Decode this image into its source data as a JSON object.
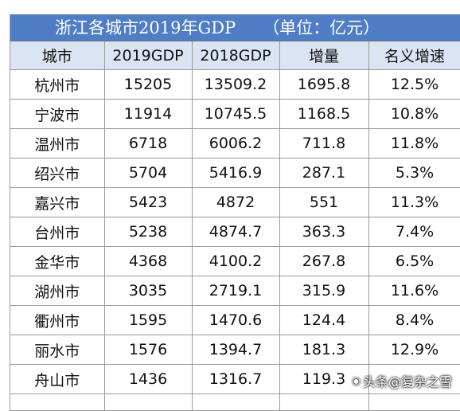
{
  "table": {
    "title": "浙江各城市2019年GDP",
    "unit": "（单位：亿元）",
    "headers": [
      "城市",
      "2019GDP",
      "2018GDP",
      "增量",
      "名义增速"
    ],
    "rows": [
      [
        "杭州市",
        "15205",
        "13509.2",
        "1695.8",
        "12.5%"
      ],
      [
        "宁波市",
        "11914",
        "10745.5",
        "1168.5",
        "10.8%"
      ],
      [
        "温州市",
        "6718",
        "6006.2",
        "711.8",
        "11.8%"
      ],
      [
        "绍兴市",
        "5704",
        "5416.9",
        "287.1",
        "5.3%"
      ],
      [
        "嘉兴市",
        "5423",
        "4872",
        "551",
        "11.3%"
      ],
      [
        "台州市",
        "5238",
        "4874.7",
        "363.3",
        "7.4%"
      ],
      [
        "金华市",
        "4368",
        "4100.2",
        "267.8",
        "6.5%"
      ],
      [
        "湖州市",
        "3035",
        "2719.1",
        "315.9",
        "11.6%"
      ],
      [
        "衢州市",
        "1595",
        "1470.6",
        "124.4",
        "8.4%"
      ],
      [
        "丽水市",
        "1576",
        "1394.7",
        "181.3",
        "12.9%"
      ],
      [
        "舟山市",
        "1436",
        "1316.7",
        "119.3",
        ""
      ]
    ]
  },
  "watermark": {
    "text": "头条@复杂之雪",
    "icon": "camera-icon"
  }
}
